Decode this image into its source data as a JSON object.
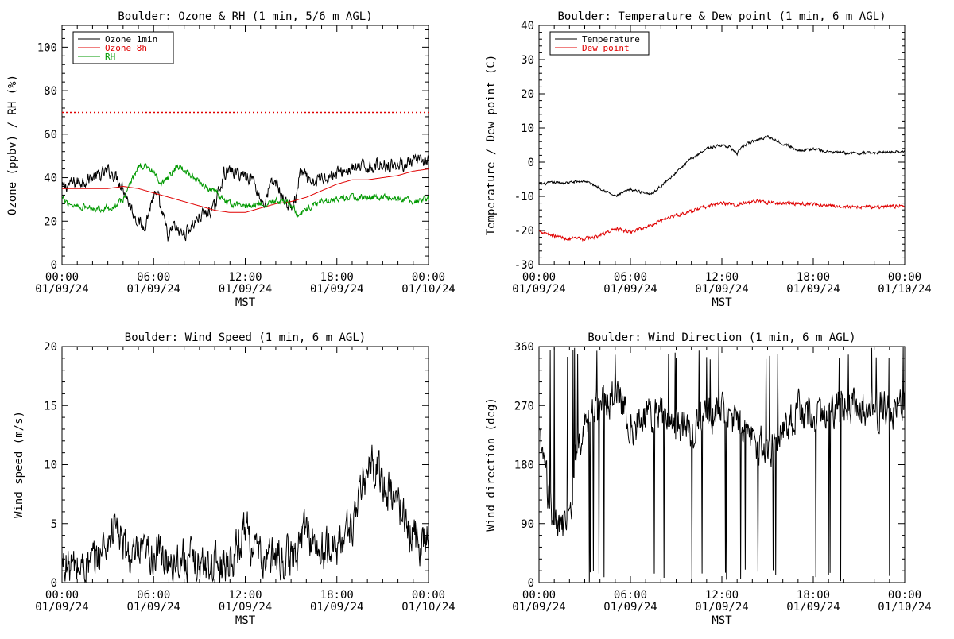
{
  "chart_data": [
    {
      "type": "line",
      "title": "Boulder: Ozone & RH (1 min, 5/6 m AGL)",
      "xlabel": "MST",
      "ylabel": "Ozone (ppbv) / RH (%)",
      "ylim": [
        0,
        110
      ],
      "yticks": [
        0,
        20,
        40,
        60,
        80,
        100
      ],
      "x_tick_labels": [
        [
          "00:00",
          "01/09/24"
        ],
        [
          "06:00",
          "01/09/24"
        ],
        [
          "12:00",
          "01/09/24"
        ],
        [
          "18:00",
          "01/09/24"
        ],
        [
          "00:00",
          "01/10/24"
        ]
      ],
      "x_hours": [
        0,
        6,
        12,
        18,
        24
      ],
      "grid": false,
      "legend": "top-left",
      "reference_line": {
        "y": 70,
        "color": "#e00000",
        "style": "dotted"
      },
      "series": [
        {
          "name": "Ozone 1min",
          "color": "#000000",
          "noise": 2.6,
          "x": [
            0,
            0.5,
            1,
            1.5,
            2,
            2.5,
            3,
            3.3,
            3.6,
            4,
            4.3,
            4.6,
            5,
            5.3,
            5.6,
            6,
            6.3,
            6.6,
            7,
            7.3,
            7.6,
            8,
            8.5,
            9,
            9.5,
            10,
            10.3,
            10.6,
            11,
            11.5,
            12,
            12.5,
            13,
            13.3,
            13.6,
            14,
            14.5,
            15,
            15.3,
            15.6,
            16,
            16.3,
            16.6,
            17,
            17.5,
            18,
            18.5,
            19,
            20,
            21,
            22,
            23,
            24
          ],
          "values": [
            35,
            37,
            38,
            39,
            40,
            41,
            43,
            42,
            40,
            36,
            30,
            25,
            20,
            17,
            22,
            32,
            30,
            22,
            12,
            18,
            15,
            14,
            18,
            22,
            24,
            26,
            35,
            42,
            43,
            42,
            41,
            40,
            30,
            28,
            36,
            38,
            30,
            26,
            30,
            42,
            40,
            36,
            38,
            40,
            41,
            42,
            43,
            44,
            45,
            46,
            46,
            47,
            48
          ]
        },
        {
          "name": "Ozone 8h",
          "color": "#e00000",
          "noise": 0,
          "x": [
            0,
            1,
            2,
            3,
            4,
            5,
            6,
            7,
            8,
            9,
            10,
            11,
            12,
            13,
            14,
            15,
            16,
            17,
            18,
            19,
            20,
            21,
            22,
            23,
            24
          ],
          "values": [
            35,
            35,
            35,
            35,
            36,
            35,
            33,
            31,
            29,
            27,
            25,
            24,
            24,
            26,
            28,
            29,
            31,
            34,
            37,
            39,
            39,
            40,
            41,
            43,
            44
          ]
        },
        {
          "name": "RH",
          "color": "#009900",
          "noise": 1.3,
          "x": [
            0,
            0.5,
            1,
            2,
            3,
            3.5,
            4,
            4.5,
            5,
            5.5,
            6,
            6.5,
            7,
            7.5,
            8,
            8.5,
            9,
            10,
            11,
            12,
            13,
            14,
            15,
            15.5,
            16,
            17,
            18,
            19,
            20,
            21,
            22,
            23,
            24
          ],
          "values": [
            30,
            28,
            27,
            26,
            26,
            27,
            30,
            38,
            45,
            46,
            42,
            36,
            40,
            45,
            44,
            41,
            38,
            33,
            28,
            27,
            28,
            29,
            28,
            22,
            26,
            29,
            30,
            31,
            31,
            31,
            30,
            29,
            30
          ]
        }
      ]
    },
    {
      "type": "line",
      "title": "Boulder: Temperature & Dew point (1 min, 6 m AGL)",
      "xlabel": "MST",
      "ylabel": "Temperature / Dew point (C)",
      "ylim": [
        -30,
        40
      ],
      "yticks": [
        -30,
        -20,
        -10,
        0,
        10,
        20,
        30,
        40
      ],
      "x_tick_labels": [
        [
          "00:00",
          "01/09/24"
        ],
        [
          "06:00",
          "01/09/24"
        ],
        [
          "12:00",
          "01/09/24"
        ],
        [
          "18:00",
          "01/09/24"
        ],
        [
          "00:00",
          "01/10/24"
        ]
      ],
      "x_hours": [
        0,
        6,
        12,
        18,
        24
      ],
      "grid": false,
      "legend": "top-left",
      "series": [
        {
          "name": "Temperature",
          "color": "#000000",
          "noise": 0.35,
          "x": [
            0,
            1,
            2,
            3,
            4,
            5,
            6,
            7,
            7.5,
            8,
            9,
            10,
            11,
            12,
            12.5,
            13,
            13.5,
            14,
            15,
            16,
            17,
            18,
            19,
            20,
            21,
            22,
            23,
            24
          ],
          "values": [
            -6.5,
            -6,
            -6,
            -5.5,
            -7.5,
            -10,
            -8,
            -9,
            -9,
            -7,
            -3,
            1,
            4,
            5,
            4.5,
            2.5,
            5,
            6,
            7.5,
            5.5,
            3.5,
            3.8,
            3,
            2.7,
            2.6,
            2.7,
            3,
            3.2
          ]
        },
        {
          "name": "Dew point",
          "color": "#e00000",
          "noise": 0.45,
          "x": [
            0,
            1,
            2,
            3,
            4,
            5,
            6,
            7,
            8,
            9,
            10,
            11,
            12,
            13,
            14,
            15,
            16,
            17,
            18,
            19,
            20,
            21,
            22,
            23,
            24
          ],
          "values": [
            -20,
            -21.5,
            -22.5,
            -22.5,
            -21.5,
            -19.5,
            -20.5,
            -19,
            -17,
            -15.5,
            -14.5,
            -13,
            -12,
            -12.5,
            -11.5,
            -11.8,
            -12,
            -12,
            -12.5,
            -12.8,
            -13,
            -13,
            -13.2,
            -13,
            -12.8
          ]
        }
      ]
    },
    {
      "type": "line",
      "title": "Boulder: Wind Speed (1 min, 6 m AGL)",
      "xlabel": "MST",
      "ylabel": "Wind speed (m/s)",
      "ylim": [
        0,
        20
      ],
      "yticks": [
        0,
        5,
        10,
        15,
        20
      ],
      "x_tick_labels": [
        [
          "00:00",
          "01/09/24"
        ],
        [
          "06:00",
          "01/09/24"
        ],
        [
          "12:00",
          "01/09/24"
        ],
        [
          "18:00",
          "01/09/24"
        ],
        [
          "00:00",
          "01/10/24"
        ]
      ],
      "x_hours": [
        0,
        6,
        12,
        18,
        24
      ],
      "grid": false,
      "legend": "none",
      "series": [
        {
          "name": "",
          "color": "#000000",
          "noise": 1.5,
          "x": [
            0,
            1,
            2,
            3,
            3.5,
            4,
            4.5,
            5,
            6,
            7,
            8,
            9,
            10,
            11,
            11.5,
            12,
            12.5,
            13,
            14,
            15,
            15.5,
            16,
            16.5,
            17,
            18,
            18.5,
            19,
            19.5,
            20,
            20.5,
            21,
            21.5,
            22,
            22.5,
            23,
            23.5,
            24
          ],
          "values": [
            1.5,
            1.2,
            1.5,
            3.5,
            5,
            3,
            2,
            2,
            2.5,
            2,
            2,
            1.5,
            1.5,
            2,
            3,
            5,
            3,
            2,
            2,
            2,
            3,
            5,
            3,
            2.5,
            3,
            4,
            5,
            7,
            9.5,
            10,
            8.5,
            7.5,
            7,
            5,
            4,
            3.5,
            4
          ]
        }
      ]
    },
    {
      "type": "line",
      "title": "Boulder: Wind Direction (1 min, 6 m AGL)",
      "xlabel": "MST",
      "ylabel": "Wind direction (deg)",
      "ylim": [
        0,
        360
      ],
      "yticks": [
        0,
        90,
        180,
        270,
        360
      ],
      "x_tick_labels": [
        [
          "00:00",
          "01/09/24"
        ],
        [
          "06:00",
          "01/09/24"
        ],
        [
          "12:00",
          "01/09/24"
        ],
        [
          "18:00",
          "01/09/24"
        ],
        [
          "00:00",
          "01/10/24"
        ]
      ],
      "x_hours": [
        0,
        6,
        12,
        18,
        24
      ],
      "grid": false,
      "legend": "none",
      "series": [
        {
          "name": "",
          "color": "#000000",
          "noise": 25,
          "spike_rate": 0.06,
          "x": [
            0,
            0.5,
            1,
            1.5,
            2,
            2.5,
            3,
            3.5,
            4,
            4.5,
            5,
            5.5,
            6,
            7,
            8,
            9,
            10,
            11,
            12,
            13,
            14,
            15,
            16,
            17,
            18,
            19,
            20,
            21,
            22,
            23,
            24
          ],
          "values": [
            220,
            150,
            90,
            80,
            100,
            200,
            250,
            260,
            270,
            280,
            290,
            270,
            240,
            250,
            260,
            240,
            230,
            250,
            260,
            240,
            220,
            200,
            230,
            260,
            250,
            260,
            270,
            270,
            265,
            260,
            265
          ]
        }
      ]
    }
  ]
}
